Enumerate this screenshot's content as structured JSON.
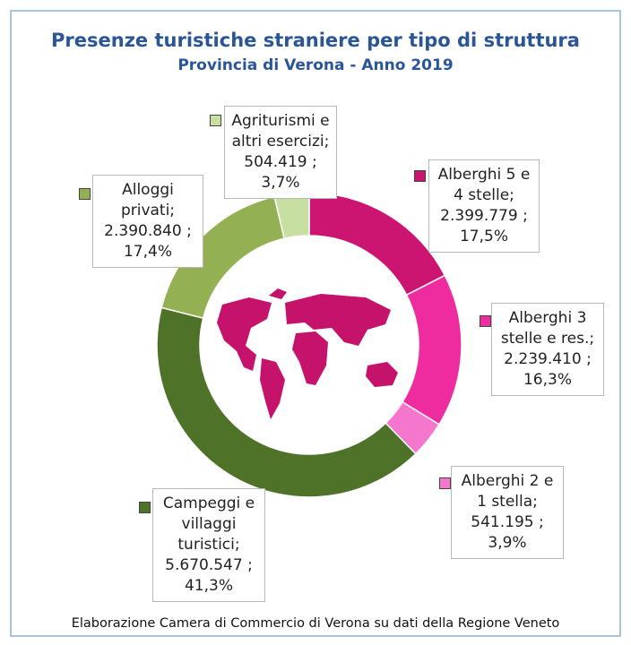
{
  "chart_data": {
    "type": "donut",
    "title": "Presenze  turistiche straniere per tipo di struttura",
    "subtitle": "Provincia di Verona - Anno 2019",
    "source": "Elaborazione Camera di Commercio di Verona su dati della Regione Veneto",
    "categories": [
      "Alberghi 5 e 4 stelle;",
      "Alberghi 3 stelle e res.;",
      "Alberghi 2 e 1 stella;",
      "Campeggi e villaggi turistici;",
      "Alloggi privati;",
      "Agriturismi e altri esercizi;"
    ],
    "values": [
      2399779,
      2239410,
      541195,
      5670547,
      2390840,
      504419
    ],
    "value_labels": [
      "2.399.779 ;",
      "2.239.410 ;",
      "541.195 ;",
      "5.670.547 ;",
      "2.390.840 ;",
      "504.419 ;"
    ],
    "percentages": [
      17.5,
      16.3,
      3.9,
      41.3,
      17.4,
      3.7
    ],
    "percentage_labels": [
      "17,5%",
      "16,3%",
      "3,9%",
      "41,3%",
      "17,4%",
      "3,7%"
    ],
    "colors": [
      "#cc1471",
      "#ee2c9f",
      "#f577cd",
      "#4f7229",
      "#93b152",
      "#c8dfa2"
    ]
  }
}
